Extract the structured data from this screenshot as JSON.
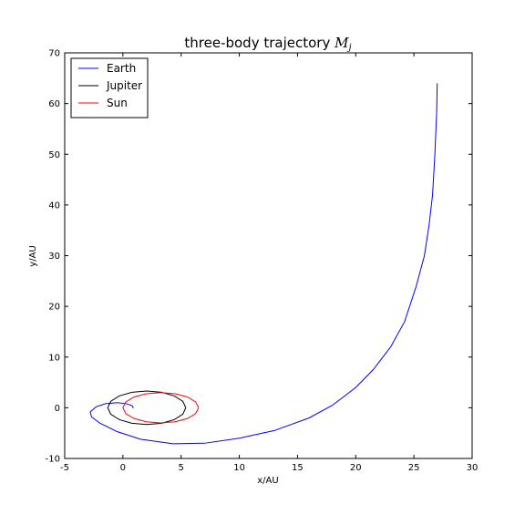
{
  "chart_data": {
    "type": "line",
    "title": {
      "text": "three-body trajectory",
      "math": "M",
      "subscript": "j"
    },
    "xlabel": "x/AU",
    "ylabel": "y/AU",
    "xlim": [
      -5,
      30
    ],
    "ylim": [
      -10,
      70
    ],
    "xticks": [
      -5,
      0,
      5,
      10,
      15,
      20,
      25,
      30
    ],
    "yticks": [
      -10,
      0,
      10,
      20,
      30,
      40,
      50,
      60,
      70
    ],
    "legend": "upper left",
    "series": [
      {
        "name": "Earth",
        "color": "#0000ff",
        "x": [
          0.9,
          0.8,
          0.3,
          -0.5,
          -1.5,
          -2.3,
          -2.8,
          -2.7,
          -2,
          -0.5,
          1.5,
          4.3,
          7,
          10,
          13,
          16,
          18,
          20,
          21.5,
          23,
          24.2,
          25.2,
          25.9,
          26.3,
          26.6,
          26.8,
          26.95,
          27
        ],
        "values": [
          -0.1,
          0.4,
          0.8,
          1.0,
          0.8,
          0.2,
          -0.8,
          -1.8,
          -3,
          -4.7,
          -6.2,
          -7.1,
          -7,
          -6,
          -4.5,
          -2,
          0.5,
          4,
          7.5,
          12,
          17,
          24,
          30,
          36,
          42,
          50,
          58,
          64
        ]
      },
      {
        "name": "Jupiter",
        "color": "#000000",
        "x": [
          5.4,
          5.15,
          4.42,
          3.33,
          2.05,
          0.77,
          -0.32,
          -1.05,
          -1.3,
          -1.05,
          -0.32,
          0.77,
          2.05,
          3.33,
          4.42,
          5.15,
          5.4
        ],
        "values": [
          0,
          1.26,
          2.33,
          3.05,
          3.3,
          3.05,
          2.33,
          1.26,
          0,
          -1.26,
          -2.33,
          -3.05,
          -3.3,
          -3.05,
          -2.33,
          -1.26,
          0
        ]
      },
      {
        "name": "Sun",
        "color": "#ff0000",
        "x": [
          6.5,
          6.25,
          5.55,
          4.49,
          3.25,
          2.01,
          0.95,
          0.25,
          0,
          0.25,
          0.95,
          2.01,
          3.25,
          4.49,
          5.55,
          6.25,
          6.5
        ],
        "values": [
          0,
          1.15,
          2.12,
          2.77,
          3,
          2.77,
          2.12,
          1.15,
          0,
          -1.15,
          -2.12,
          -2.77,
          -3,
          -2.77,
          -2.12,
          -1.15,
          0
        ]
      }
    ]
  }
}
